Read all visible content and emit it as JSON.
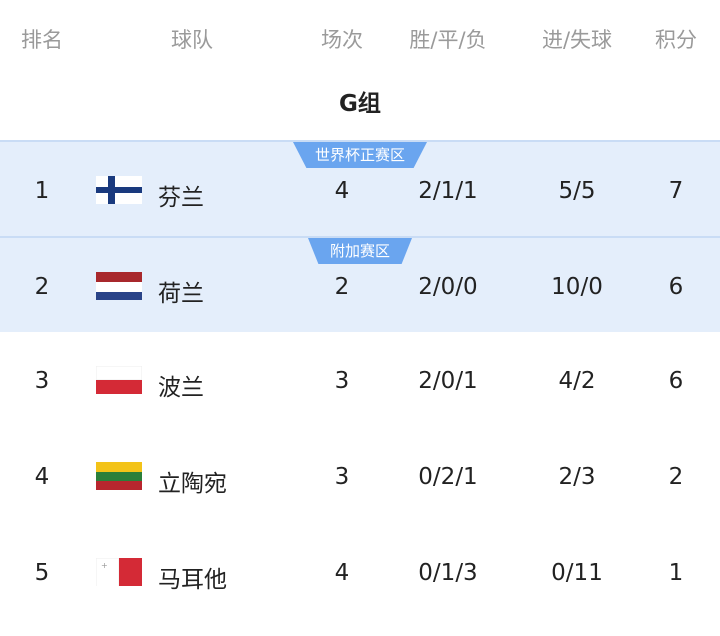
{
  "header": {
    "rank": "排名",
    "team": "球队",
    "played": "场次",
    "wdl": "胜/平/负",
    "goals": "进/失球",
    "points": "积分"
  },
  "group_title": "G组",
  "colors": {
    "highlight_bg": "#e4eefb",
    "badge": "#6aa5ef"
  },
  "rows": [
    {
      "rank": "1",
      "flag": "finland-flag",
      "team": "芬兰",
      "played": "4",
      "wdl": "2/1/1",
      "goals": "5/5",
      "points": "7",
      "badge": "世界杯正赛区",
      "highlight": true
    },
    {
      "rank": "2",
      "flag": "netherlands-flag",
      "team": "荷兰",
      "played": "2",
      "wdl": "2/0/0",
      "goals": "10/0",
      "points": "6",
      "badge": "附加赛区",
      "highlight": true
    },
    {
      "rank": "3",
      "flag": "poland-flag",
      "team": "波兰",
      "played": "3",
      "wdl": "2/0/1",
      "goals": "4/2",
      "points": "6"
    },
    {
      "rank": "4",
      "flag": "lithuania-flag",
      "team": "立陶宛",
      "played": "3",
      "wdl": "0/2/1",
      "goals": "2/3",
      "points": "2"
    },
    {
      "rank": "5",
      "flag": "malta-flag",
      "team": "马耳他",
      "played": "4",
      "wdl": "0/1/3",
      "goals": "0/11",
      "points": "1"
    }
  ]
}
